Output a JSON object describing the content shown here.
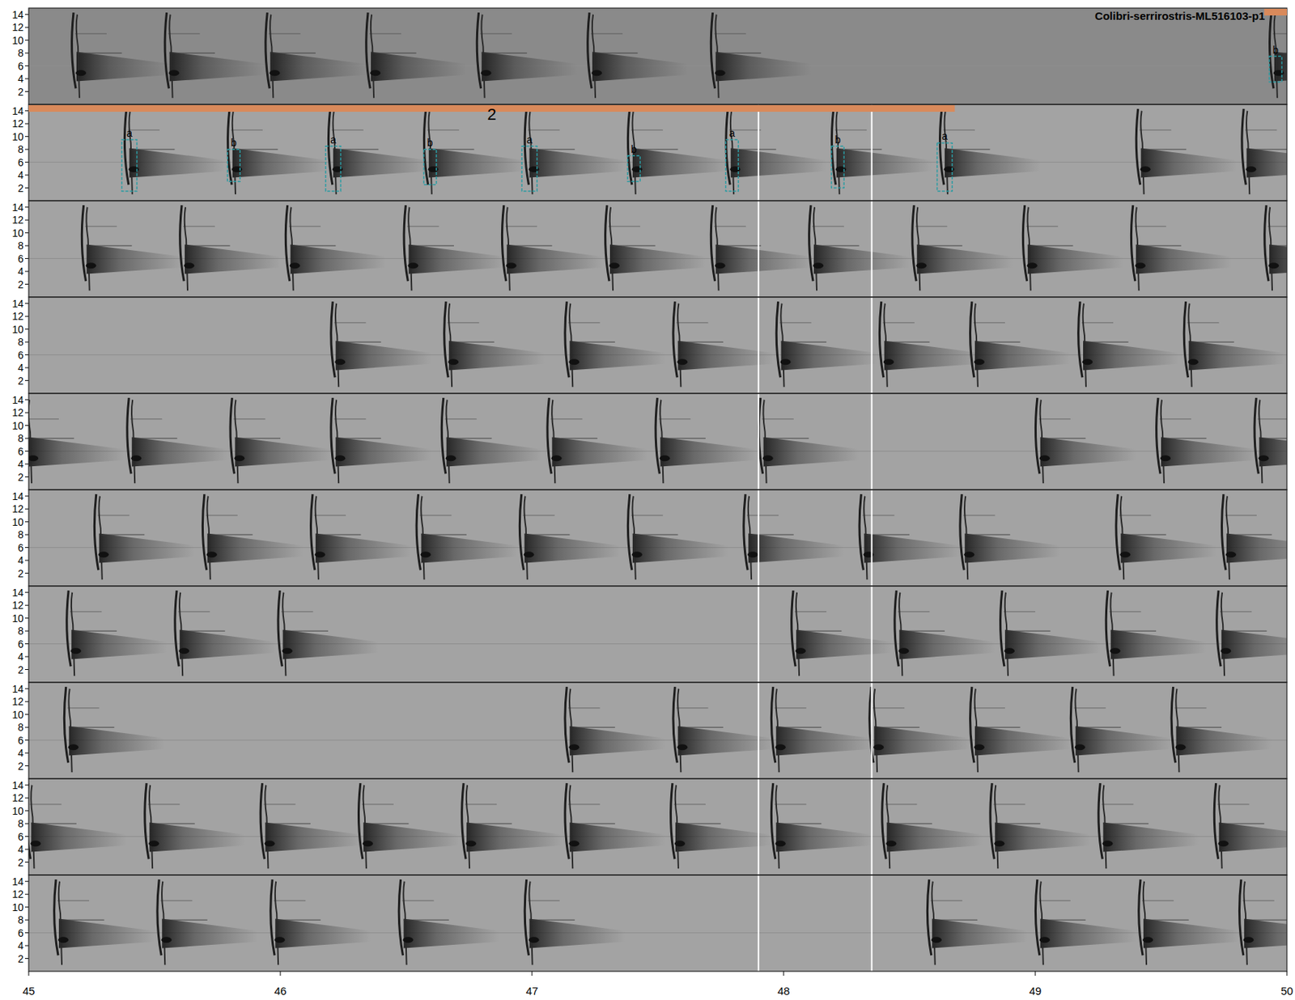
{
  "chart_data": {
    "type": "spectrogram",
    "title": "Colibri-serrirostris-ML516103-p1",
    "xlim": [
      45,
      50
    ],
    "xticks": [
      45,
      46,
      47,
      48,
      49,
      50
    ],
    "ylim": [
      0,
      15
    ],
    "yticks": [
      2,
      4,
      6,
      8,
      10,
      12,
      14
    ],
    "markers": [
      47.9,
      48.35
    ],
    "segments": [
      {
        "panel": 0,
        "start": 49.91,
        "end": 50
      },
      {
        "panel": 1,
        "start": 45,
        "end": 48.68,
        "label": "2"
      }
    ],
    "annotations": [
      {
        "panel": 0,
        "label": "b",
        "start": 49.93,
        "end": 49.98,
        "fmin": 3.5,
        "fmax": 7.5
      },
      {
        "panel": 1,
        "label": "a",
        "start": 45.37,
        "end": 45.43,
        "fmin": 1.5,
        "fmax": 9.5
      },
      {
        "panel": 1,
        "label": "b",
        "start": 45.79,
        "end": 45.84,
        "fmin": 3,
        "fmax": 8
      },
      {
        "panel": 1,
        "label": "a",
        "start": 46.18,
        "end": 46.24,
        "fmin": 1.5,
        "fmax": 8.5
      },
      {
        "panel": 1,
        "label": "b",
        "start": 46.57,
        "end": 46.62,
        "fmin": 2.5,
        "fmax": 8
      },
      {
        "panel": 1,
        "label": "a",
        "start": 46.96,
        "end": 47.02,
        "fmin": 1.5,
        "fmax": 8.5
      },
      {
        "panel": 1,
        "label": "b",
        "start": 47.38,
        "end": 47.43,
        "fmin": 3,
        "fmax": 7
      },
      {
        "panel": 1,
        "label": "a",
        "start": 47.77,
        "end": 47.82,
        "fmin": 1.5,
        "fmax": 9.5
      },
      {
        "panel": 1,
        "label": "b",
        "start": 48.19,
        "end": 48.24,
        "fmin": 2,
        "fmax": 8.5
      },
      {
        "panel": 1,
        "label": "a",
        "start": 48.61,
        "end": 48.67,
        "fmin": 1.5,
        "fmax": 9
      }
    ],
    "panels": [
      {
        "calls": [
          45.19,
          45.56,
          45.96,
          46.36,
          46.8,
          47.24,
          47.73,
          49.95
        ]
      },
      {
        "calls": [
          45.4,
          45.81,
          46.21,
          46.59,
          46.99,
          47.4,
          47.79,
          48.21,
          48.64,
          49.42,
          49.84
        ]
      },
      {
        "calls": [
          45.23,
          45.62,
          46.04,
          46.51,
          46.9,
          47.31,
          47.73,
          48.12,
          48.53,
          48.97,
          49.4,
          49.93
        ]
      },
      {
        "calls": [
          46.22,
          46.67,
          47.15,
          47.58,
          47.99,
          48.4,
          48.76,
          49.19,
          49.61
        ]
      },
      {
        "calls": [
          45.0,
          45.41,
          45.82,
          46.22,
          46.66,
          47.08,
          47.51,
          47.92,
          49.02,
          49.5,
          49.89
        ]
      },
      {
        "calls": [
          45.28,
          45.71,
          46.14,
          46.56,
          46.97,
          47.4,
          47.86,
          48.32,
          48.72,
          49.34,
          49.76
        ]
      },
      {
        "calls": [
          45.17,
          45.6,
          46.01,
          48.05,
          48.46,
          48.88,
          49.3,
          49.74
        ]
      },
      {
        "calls": [
          45.16,
          47.15,
          47.58,
          47.97,
          48.36,
          48.76,
          49.16,
          49.56
        ]
      },
      {
        "calls": [
          45.01,
          45.48,
          45.94,
          46.33,
          46.74,
          47.15,
          47.57,
          47.97,
          48.41,
          48.84,
          49.27,
          49.73
        ]
      },
      {
        "calls": [
          45.12,
          45.53,
          45.98,
          46.49,
          46.99,
          48.59,
          49.02,
          49.43,
          49.83
        ]
      }
    ]
  }
}
